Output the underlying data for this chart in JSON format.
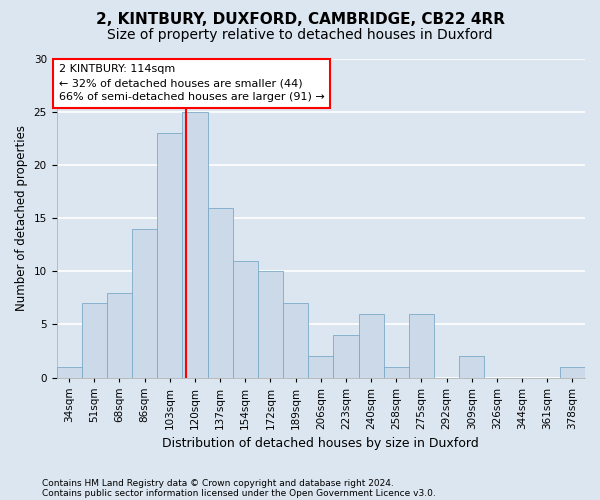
{
  "title_line1": "2, KINTBURY, DUXFORD, CAMBRIDGE, CB22 4RR",
  "title_line2": "Size of property relative to detached houses in Duxford",
  "xlabel": "Distribution of detached houses by size in Duxford",
  "ylabel": "Number of detached properties",
  "footnote1": "Contains HM Land Registry data © Crown copyright and database right 2024.",
  "footnote2": "Contains public sector information licensed under the Open Government Licence v3.0.",
  "bin_labels": [
    "34sqm",
    "51sqm",
    "68sqm",
    "86sqm",
    "103sqm",
    "120sqm",
    "137sqm",
    "154sqm",
    "172sqm",
    "189sqm",
    "206sqm",
    "223sqm",
    "240sqm",
    "258sqm",
    "275sqm",
    "292sqm",
    "309sqm",
    "326sqm",
    "344sqm",
    "361sqm",
    "378sqm"
  ],
  "bar_values": [
    1,
    7,
    8,
    14,
    23,
    25,
    16,
    11,
    10,
    7,
    2,
    4,
    6,
    1,
    6,
    0,
    2,
    0,
    0,
    0,
    1
  ],
  "bar_color": "#ccd9e8",
  "bar_edge_color": "#7aaac8",
  "vline_x": 4.647,
  "annotation_text": "2 KINTBURY: 114sqm\n← 32% of detached houses are smaller (44)\n66% of semi-detached houses are larger (91) →",
  "annotation_box_color": "white",
  "annotation_box_edge": "red",
  "vline_color": "red",
  "ylim": [
    0,
    30
  ],
  "yticks": [
    0,
    5,
    10,
    15,
    20,
    25,
    30
  ],
  "background_color": "#dce6f0",
  "axes_background": "#dce6f0",
  "grid_color": "white",
  "title1_fontsize": 11,
  "title2_fontsize": 10,
  "xlabel_fontsize": 9,
  "ylabel_fontsize": 8.5,
  "annot_fontsize": 8,
  "tick_fontsize": 7.5,
  "footnote_fontsize": 6.5
}
